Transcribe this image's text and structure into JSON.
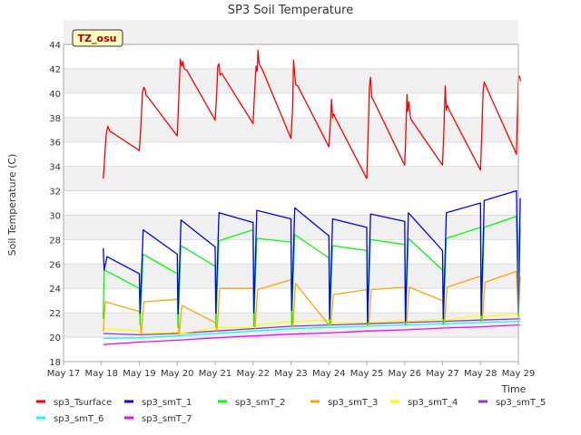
{
  "chart_data": {
    "type": "line",
    "title": "SP3 Soil Temperature",
    "xlabel": "Time",
    "ylabel": "Soil Temperature (C)",
    "annotation": "TZ_osu",
    "ylim": [
      18,
      44
    ],
    "xlim": [
      0,
      12
    ],
    "grid": true,
    "legend_position": "bottom",
    "y_ticks": [
      "18",
      "20",
      "22",
      "24",
      "26",
      "28",
      "30",
      "32",
      "34",
      "36",
      "38",
      "40",
      "42",
      "44"
    ],
    "x_ticks": [
      "May 17",
      "May 18",
      "May 19",
      "May 20",
      "May 21",
      "May 22",
      "May 23",
      "May 24",
      "May 25",
      "May 26",
      "May 27",
      "May 28",
      "May 29"
    ],
    "colors": {
      "sp3_Tsurface": "#ff0000",
      "sp3_smT_1": "#0000ff",
      "sp3_smT_2": "#00ff00",
      "sp3_smT_3": "#ffa500",
      "sp3_smT_4": "#ffff00",
      "sp3_smT_5": "#9932cc",
      "sp3_smT_6": "#00ffff",
      "sp3_smT_7": "#ff00ff"
    },
    "series": [
      {
        "name": "sp3_Tsurface",
        "x": [
          1.05,
          1.07,
          1.12,
          1.15,
          1.17,
          1.22,
          2.0,
          2.05,
          2.08,
          2.12,
          2.15,
          2.18,
          2.22,
          3.0,
          3.04,
          3.08,
          3.12,
          3.15,
          3.18,
          3.25,
          4.0,
          4.04,
          4.07,
          4.1,
          4.13,
          4.18,
          5.0,
          5.04,
          5.08,
          5.11,
          5.13,
          5.16,
          5.18,
          5.25,
          6.0,
          6.04,
          6.07,
          6.1,
          6.13,
          6.18,
          7.0,
          7.04,
          7.07,
          7.1,
          7.13,
          7.18,
          8.0,
          8.04,
          8.07,
          8.1,
          8.13,
          8.18,
          9.0,
          9.04,
          9.06,
          9.08,
          9.11,
          9.16,
          10.0,
          10.04,
          10.07,
          10.1,
          10.13,
          10.18,
          11.0,
          11.04,
          11.07,
          11.1,
          11.13,
          11.2,
          11.95,
          12.0,
          12.03,
          12.06
        ],
        "y": [
          33.0,
          34.0,
          36.5,
          37.0,
          37.3,
          36.9,
          35.3,
          37.8,
          40.0,
          40.5,
          40.3,
          39.8,
          39.7,
          36.5,
          39.5,
          42.8,
          42.2,
          42.6,
          42.0,
          41.9,
          37.8,
          40.0,
          42.2,
          42.4,
          41.5,
          41.6,
          37.5,
          40.0,
          42.2,
          41.8,
          43.5,
          42.5,
          42.3,
          41.9,
          36.3,
          38.5,
          42.7,
          41.5,
          40.7,
          40.6,
          35.6,
          37.5,
          39.5,
          38.0,
          38.3,
          37.9,
          33.0,
          37.0,
          40.5,
          41.3,
          39.7,
          39.4,
          34.1,
          37.5,
          39.9,
          38.5,
          39.3,
          37.9,
          34.1,
          37.5,
          40.6,
          38.6,
          39.0,
          38.6,
          33.7,
          37.0,
          40.2,
          40.9,
          40.7,
          40.2,
          35.0,
          41.2,
          41.4,
          41.0
        ]
      },
      {
        "name": "sp3_smT_1",
        "x": [
          1.05,
          1.07,
          1.15,
          2.0,
          2.02,
          2.1,
          3.0,
          3.02,
          3.1,
          4.0,
          4.02,
          4.1,
          5.0,
          5.02,
          5.1,
          6.0,
          6.02,
          6.1,
          7.0,
          7.02,
          7.1,
          8.0,
          8.02,
          8.1,
          9.0,
          9.02,
          9.1,
          10.0,
          10.02,
          10.1,
          11.0,
          11.02,
          11.1,
          11.95,
          12.0,
          12.05
        ],
        "y": [
          27.3,
          25.5,
          26.6,
          25.2,
          22.0,
          28.8,
          26.8,
          21.9,
          29.6,
          27.4,
          22.0,
          30.2,
          29.4,
          22.0,
          30.4,
          29.7,
          22.2,
          30.6,
          28.3,
          21.5,
          29.7,
          29.0,
          21.2,
          30.1,
          29.5,
          21.3,
          30.2,
          27.1,
          21.5,
          30.2,
          31.0,
          21.8,
          31.2,
          32.0,
          22.0,
          31.4
        ]
      },
      {
        "name": "sp3_smT_2",
        "x": [
          1.05,
          1.07,
          1.15,
          2.0,
          2.02,
          2.1,
          3.0,
          3.02,
          3.1,
          4.0,
          4.02,
          4.1,
          5.0,
          5.02,
          5.1,
          6.0,
          6.02,
          6.1,
          7.0,
          7.02,
          7.1,
          8.0,
          8.02,
          8.1,
          9.0,
          9.02,
          9.1,
          10.0,
          10.02,
          10.1,
          11.0,
          11.02,
          11.1,
          11.95,
          12.0,
          12.05
        ],
        "y": [
          21.5,
          25.5,
          25.4,
          24.0,
          21.0,
          26.8,
          25.2,
          20.8,
          27.5,
          25.8,
          20.9,
          27.9,
          28.8,
          20.9,
          28.1,
          27.8,
          21.0,
          28.4,
          26.5,
          21.0,
          27.5,
          27.1,
          21.0,
          28.0,
          27.6,
          21.0,
          28.1,
          25.5,
          21.0,
          28.1,
          29.0,
          21.3,
          29.0,
          29.9,
          21.4,
          29.0
        ]
      },
      {
        "name": "sp3_smT_3",
        "x": [
          1.05,
          1.1,
          2.0,
          2.05,
          2.12,
          3.0,
          3.05,
          3.12,
          4.0,
          4.05,
          4.12,
          5.0,
          5.05,
          5.12,
          6.0,
          6.05,
          6.12,
          7.0,
          7.05,
          7.12,
          8.0,
          8.05,
          8.12,
          9.0,
          9.05,
          9.12,
          10.0,
          10.05,
          10.12,
          11.0,
          11.05,
          11.12,
          11.95,
          12.0,
          12.05
        ],
        "y": [
          20.5,
          22.9,
          22.1,
          20.3,
          22.9,
          23.1,
          20.2,
          22.6,
          21.2,
          20.5,
          24.0,
          24.0,
          20.7,
          23.9,
          24.7,
          20.8,
          24.4,
          21.0,
          21.0,
          23.5,
          23.9,
          21.0,
          23.9,
          24.1,
          21.1,
          24.1,
          23.0,
          21.2,
          24.1,
          25.0,
          21.4,
          24.5,
          25.4,
          21.6,
          25.0
        ]
      },
      {
        "name": "sp3_smT_4",
        "x": [
          1.05,
          2.0,
          2.1,
          3.0,
          3.1,
          4.0,
          4.1,
          5.0,
          5.1,
          6.0,
          6.1,
          7.0,
          7.1,
          8.0,
          8.1,
          9.0,
          9.1,
          10.0,
          10.1,
          11.0,
          11.1,
          12.0,
          12.05
        ],
        "y": [
          20.7,
          20.5,
          20.3,
          20.4,
          20.3,
          20.8,
          20.8,
          20.8,
          21.0,
          21.3,
          21.3,
          21.4,
          21.2,
          21.2,
          21.2,
          21.4,
          21.3,
          21.5,
          21.4,
          21.8,
          21.7,
          21.9,
          21.8
        ]
      },
      {
        "name": "sp3_smT_5",
        "x": [
          1.05,
          2.0,
          3.0,
          4.0,
          5.0,
          6.0,
          7.0,
          8.0,
          9.0,
          10.0,
          11.0,
          12.0,
          12.05
        ],
        "y": [
          20.3,
          20.2,
          20.3,
          20.5,
          20.7,
          20.9,
          21.0,
          21.1,
          21.2,
          21.3,
          21.4,
          21.5,
          21.5
        ]
      },
      {
        "name": "sp3_smT_6",
        "x": [
          1.05,
          2.0,
          3.0,
          4.0,
          5.0,
          6.0,
          7.0,
          8.0,
          9.0,
          10.0,
          11.0,
          12.0,
          12.05
        ],
        "y": [
          19.9,
          19.95,
          20.1,
          20.3,
          20.5,
          20.7,
          20.8,
          20.9,
          21.0,
          21.1,
          21.2,
          21.3,
          21.3
        ]
      },
      {
        "name": "sp3_smT_7",
        "x": [
          1.05,
          2.0,
          3.0,
          4.0,
          5.0,
          6.0,
          7.0,
          8.0,
          9.0,
          10.0,
          11.0,
          12.0,
          12.05
        ],
        "y": [
          19.4,
          19.6,
          19.75,
          19.95,
          20.1,
          20.25,
          20.35,
          20.5,
          20.6,
          20.75,
          20.85,
          21.0,
          21.0
        ]
      }
    ]
  }
}
